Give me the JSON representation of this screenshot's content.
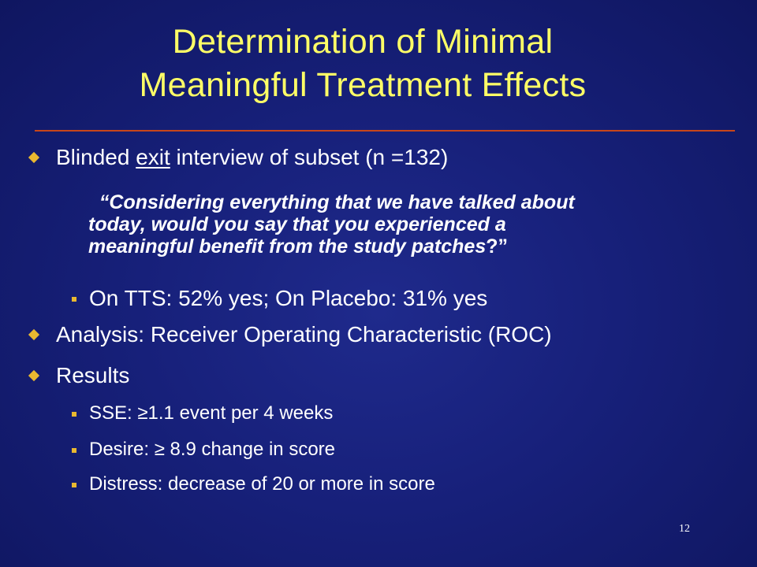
{
  "slide": {
    "title_line1": "Determination of Minimal",
    "title_line2": "Meaningful Treatment Effects",
    "bullet1": {
      "pre": "Blinded ",
      "underlined": "exit",
      "post": " interview of subset (n =132)"
    },
    "quote": {
      "line1_open": "“",
      "line1": "Considering everything that we have talked about",
      "line2": "today, would you say that you experienced a",
      "line3": "meaningful benefit from the study patches",
      "line3_close": "?”"
    },
    "sub1": "On TTS: 52% yes;  On Placebo: 31% yes",
    "bullet2": "Analysis: Receiver Operating Characteristic (ROC)",
    "bullet3": "Results",
    "results": [
      "SSE: ≥1.1 event per 4 weeks",
      "Desire: ≥ 8.9 change in score",
      "Distress: decrease of 20 or more in score"
    ],
    "page_number": "12"
  },
  "colors": {
    "background": "#17207a",
    "title": "#ffff66",
    "rule": "#c8461a",
    "bullet": "#e9b830",
    "text": "#ffffff"
  },
  "icons": {
    "bullet_level1": "diamond-bullet-icon",
    "bullet_level2": "square-bullet-icon"
  }
}
